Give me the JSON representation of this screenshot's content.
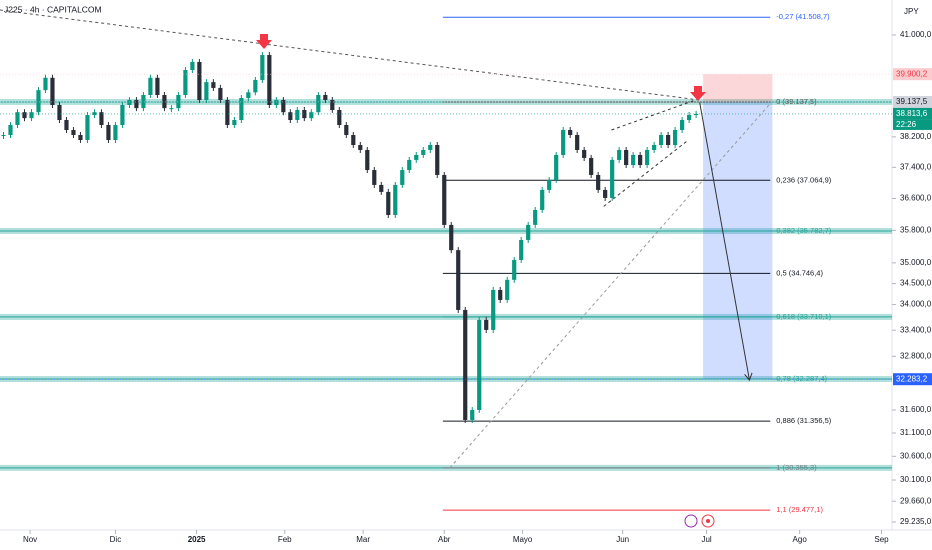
{
  "chart_data": {
    "type": "candlestick",
    "title": "J225 · 4h · CAPITALCOM",
    "currency": "JPY",
    "countdown": "22:26",
    "log_scale": true,
    "xlim": [
      -0.5,
      127
    ],
    "ylim": [
      29114,
      42009
    ],
    "up_color": "#089981",
    "down_color": "#2a2e39",
    "values": [
      38250,
      38516,
      38860,
      38700,
      38860,
      39460,
      39800,
      39055,
      38650,
      38383,
      38250,
      38117,
      38784,
      38860,
      38516,
      38117,
      38516,
      39055,
      39190,
      38970,
      39327,
      39800,
      39327,
      38970,
      38970,
      39327,
      40015,
      40240,
      39190,
      39680,
      39520,
      39190,
      38516,
      38650,
      39245,
      39400,
      39740,
      40434,
      39055,
      39190,
      38860,
      38650,
      38920,
      38700,
      38860,
      39327,
      39190,
      38920,
      38516,
      38250,
      37985,
      37854,
      37330,
      36946,
      36767,
      36183,
      36946,
      37330,
      37593,
      37723,
      37854,
      37985,
      37203,
      35935,
      35310,
      33874,
      31382,
      31600,
      33640,
      33407,
      34348,
      34110,
      34590,
      35070,
      35561,
      35935,
      36310,
      36818,
      37075,
      37723,
      38383,
      38250,
      37854,
      37645,
      37203,
      36818,
      36614,
      37593,
      37854,
      37460,
      37723,
      37460,
      37854,
      37985,
      38250,
      37985,
      38383,
      38650,
      38784,
      38813.6
    ],
    "yticks": [
      {
        "value": 41000,
        "label": "41.000,0"
      },
      {
        "value": 38200,
        "label": "38.200,0"
      },
      {
        "value": 37400,
        "label": "37.400,0"
      },
      {
        "value": 36600,
        "label": "36.600,0"
      },
      {
        "value": 35800,
        "label": "35.800,0"
      },
      {
        "value": 35000,
        "label": "35.000,0"
      },
      {
        "value": 34500,
        "label": "34.500,0"
      },
      {
        "value": 34000,
        "label": "34.000,0"
      },
      {
        "value": 33400,
        "label": "33.400,0"
      },
      {
        "value": 32800,
        "label": "32.800,0"
      },
      {
        "value": 31600,
        "label": "31.600,0"
      },
      {
        "value": 31100,
        "label": "31.100,0"
      },
      {
        "value": 30600,
        "label": "30.600,0"
      },
      {
        "value": 30100,
        "label": "30.100,0"
      },
      {
        "value": 29660,
        "label": "29.660,0"
      },
      {
        "value": 29235,
        "label": "29.235,0"
      }
    ],
    "xticks": [
      {
        "value": 3.8,
        "label": "Nov"
      },
      {
        "value": 16,
        "label": "Dic"
      },
      {
        "value": 27.6,
        "label": "2025"
      },
      {
        "value": 40.2,
        "label": "Feb"
      },
      {
        "value": 51.4,
        "label": "Mar"
      },
      {
        "value": 63,
        "label": "Abr"
      },
      {
        "value": 74.2,
        "label": "Mayo"
      },
      {
        "value": 88.5,
        "label": "Jun"
      },
      {
        "value": 100.5,
        "label": "Jul"
      },
      {
        "value": 113.8,
        "label": "Ago"
      },
      {
        "value": 125.5,
        "label": "Sep"
      }
    ],
    "fib": {
      "x": [
        62.8,
        109.6
      ],
      "levels": [
        {
          "price": 41508.7,
          "label": "-0,27 (41.508,7)",
          "color": "#2962ff"
        },
        {
          "price": 39137.5,
          "label": "0 (39.137,5)",
          "color": "#555555"
        },
        {
          "price": 37064.9,
          "label": "0,236 (37.064,9)",
          "color": "#131722"
        },
        {
          "price": 35782.7,
          "label": "0,382 (35.782,7)",
          "color": "#26a69a"
        },
        {
          "price": 34746.4,
          "label": "0,5 (34.746,4)",
          "color": "#131722"
        },
        {
          "price": 33710.1,
          "label": "0,618 (33.710,1)",
          "color": "#26a69a"
        },
        {
          "price": 32287.4,
          "label": "0,78 (32.287,4)",
          "color": "#26a69a"
        },
        {
          "price": 31356.5,
          "label": "0,886 (31.356,5)",
          "color": "#131722"
        },
        {
          "price": 30355.3,
          "label": "1 (30.355,3)",
          "color": "#787b86"
        },
        {
          "price": 29477.1,
          "label": "1,1 (29.477,1)",
          "color": "#f23645"
        }
      ]
    },
    "zones": [
      39137.5,
      35782.7,
      33710.1,
      32287.4,
      30355.3
    ],
    "trendlines": [
      {
        "x": [
          -0.5,
          99.5
        ],
        "values": [
          41718,
          39190
        ],
        "color": "#555",
        "dashed": true
      },
      {
        "x": [
          63.8,
          109.8
        ],
        "values": [
          30355,
          39137
        ],
        "color": "#999",
        "dashed": true
      },
      {
        "x": [
          86.9,
          98.9
        ],
        "values": [
          38383,
          39190
        ],
        "color": "#333",
        "dashed": true
      },
      {
        "x": [
          85.8,
          97.9
        ],
        "values": [
          36400,
          38117
        ],
        "color": "#333",
        "dashed": true
      },
      {
        "x": [
          99.5,
          106.6
        ],
        "values": [
          39137.5,
          32283.2
        ],
        "color": "#333",
        "dashed": false,
        "arrow": true
      }
    ],
    "position": {
      "x": [
        100,
        109.9
      ],
      "entry": 39137.5,
      "stop": 39900.2,
      "target": 32283.2
    },
    "price_labels": [
      {
        "price": 39900.2,
        "label": "39.900,2",
        "bg": "#fccbcd",
        "fg": "#f23645"
      },
      {
        "price": 39137.5,
        "label": "39.137,5",
        "bg": "#d1d4dc",
        "fg": "#131722"
      },
      {
        "price": 38813.6,
        "label": "38.813,6",
        "bg": "#089981",
        "fg": "#ffffff"
      },
      {
        "price": 32283.2,
        "label": "32.283,2",
        "bg": "#2962ff",
        "fg": "#ffffff"
      }
    ]
  }
}
